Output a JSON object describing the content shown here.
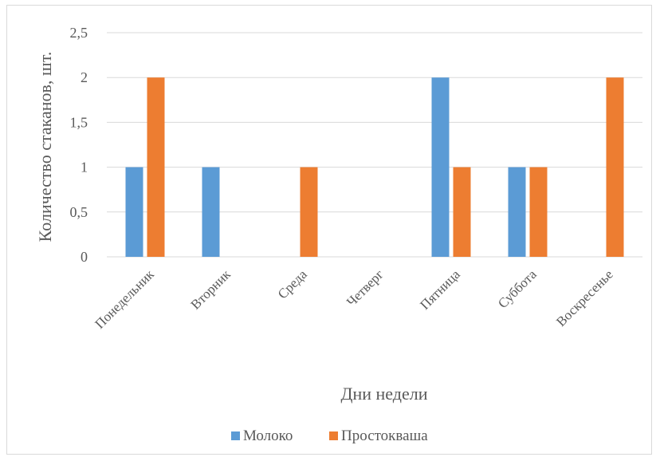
{
  "chart_data": {
    "type": "bar",
    "title": "",
    "categories": [
      "Понедельник",
      "Вторник",
      "Среда",
      "Четверг",
      "Пятница",
      "Суббота",
      "Воскресенье"
    ],
    "series": [
      {
        "name": "Молоко",
        "color": "#5b9bd5",
        "values": [
          1,
          1,
          0,
          0,
          2,
          1,
          0
        ]
      },
      {
        "name": "Простокваша",
        "color": "#ed7d31",
        "values": [
          2,
          0,
          1,
          0,
          1,
          1,
          2
        ]
      }
    ],
    "xlabel": "Дни недели",
    "ylabel": "Количество стаканов, шт.",
    "ylim": [
      0,
      2.5
    ],
    "yticks": [
      "0",
      "0,5",
      "1",
      "1,5",
      "2",
      "2,5"
    ],
    "grid": true,
    "legend_position": "bottom"
  }
}
